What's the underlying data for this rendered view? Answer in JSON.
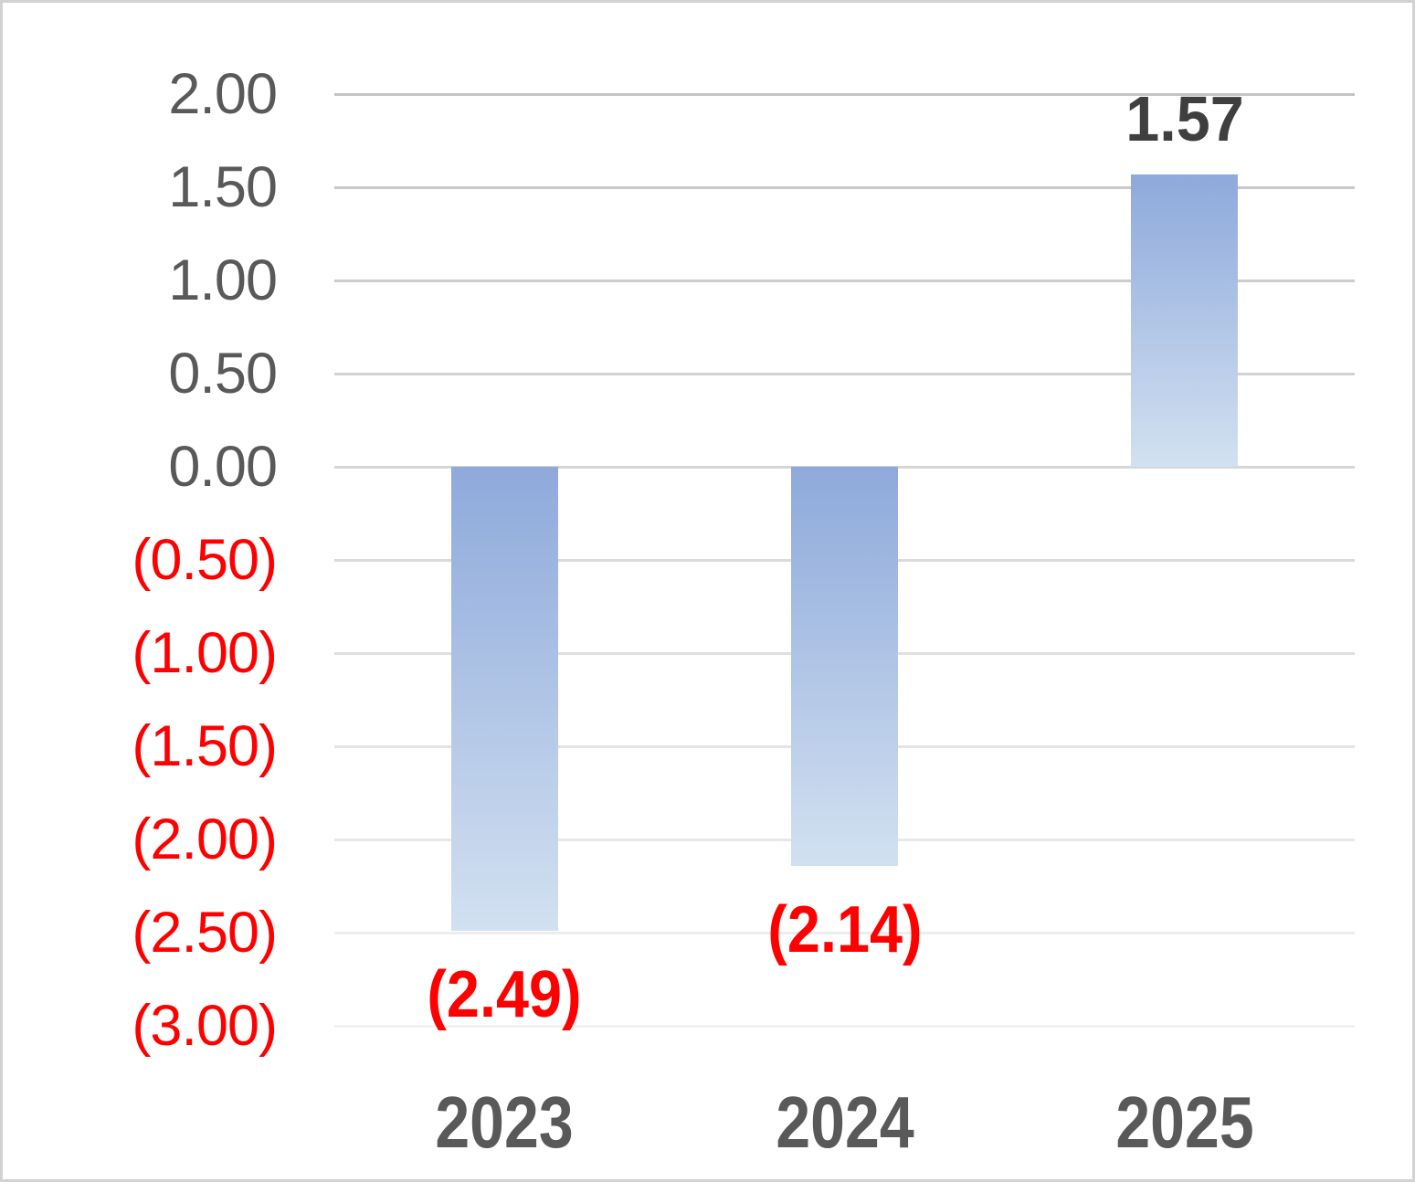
{
  "chart_data": {
    "type": "bar",
    "title": "",
    "xlabel": "",
    "ylabel": "",
    "legend": "none",
    "grid": true,
    "categories": [
      "2023",
      "2024",
      "2025"
    ],
    "values": [
      -2.49,
      -2.14,
      1.57
    ],
    "data_labels": [
      "(2.49)",
      "(2.14)",
      "1.57"
    ],
    "ylim": [
      -3.0,
      2.0
    ],
    "y_tick_step": 0.5,
    "y_ticks": [
      {
        "label": "2.00",
        "value": 2.0
      },
      {
        "label": "1.50",
        "value": 1.5
      },
      {
        "label": "1.00",
        "value": 1.0
      },
      {
        "label": "0.50",
        "value": 0.5
      },
      {
        "label": "0.00",
        "value": 0.0
      },
      {
        "label": "(0.50)",
        "value": -0.5
      },
      {
        "label": "(1.00)",
        "value": -1.0
      },
      {
        "label": "(1.50)",
        "value": -1.5
      },
      {
        "label": "(2.00)",
        "value": -2.0
      },
      {
        "label": "(2.50)",
        "value": -2.5
      },
      {
        "label": "(3.00)",
        "value": -3.0
      }
    ],
    "colors": {
      "bar_gradient_top": "#8EA9DB",
      "bar_gradient_bottom": "#D2E1F1",
      "tick_positive": "#595959",
      "tick_negative": "#FF0000",
      "data_label_positive": "#3F3F3F",
      "data_label_negative": "#FF0000",
      "category_label": "#595959",
      "grid_top": "#C4C4C4",
      "grid_bottom": "#F1F1F1",
      "frame_border": "#D2D2D2"
    }
  }
}
